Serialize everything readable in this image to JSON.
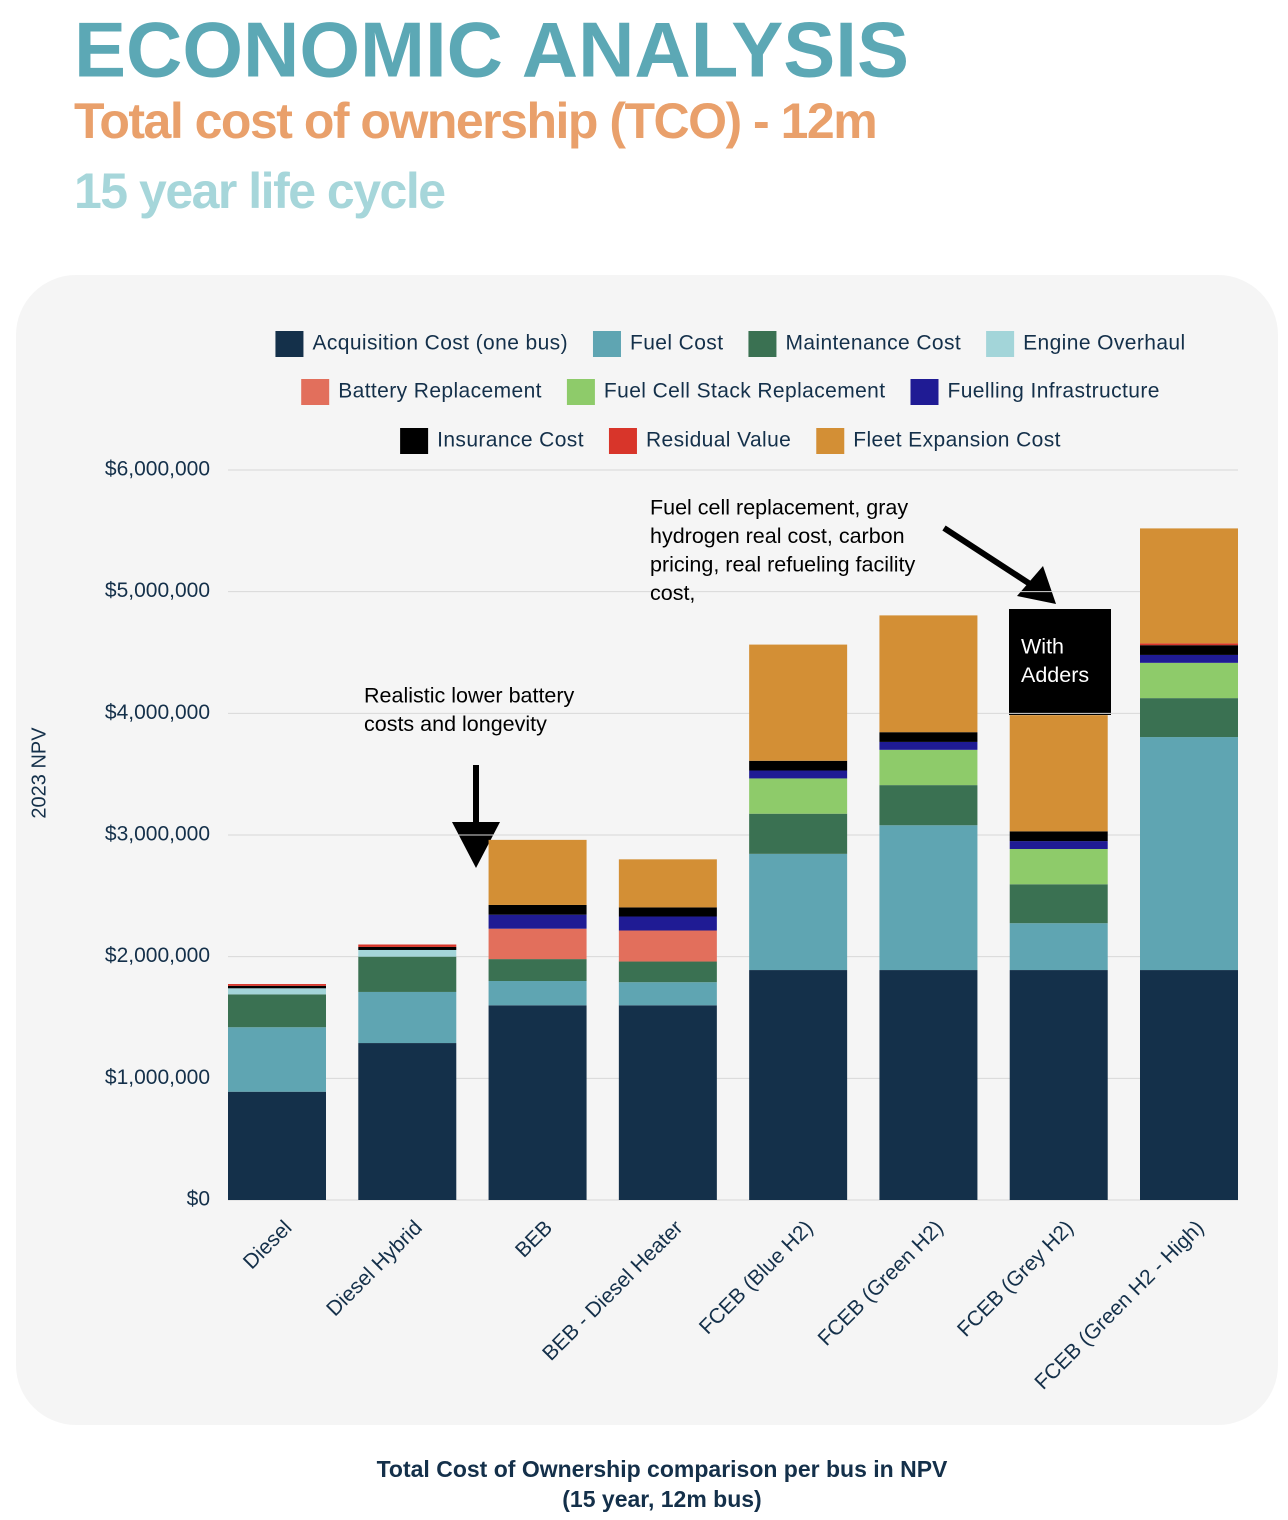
{
  "header": {
    "title": "ECONOMIC ANALYSIS",
    "subtitle": "Total cost of ownership (TCO) - 12m",
    "note": "15 year life cycle"
  },
  "chart_data": {
    "type": "stacked_bar",
    "ylabel": "2023 NPV",
    "categories": [
      "Diesel",
      "Diesel Hybrid",
      "BEB",
      "BEB - Diesel Heater",
      "FCEB (Blue H2)",
      "FCEB (Green H2)",
      "FCEB (Grey H2)",
      "FCEB (Green H2 - High)"
    ],
    "series": [
      {
        "name": "Acquisition Cost (one bus)",
        "color": "#14304a",
        "values": [
          890000,
          1290000,
          1600000,
          1600000,
          1890000,
          1890000,
          1890000,
          1890000
        ]
      },
      {
        "name": "Fuel Cost",
        "color": "#5fa5b2",
        "values": [
          530000,
          420000,
          200000,
          190000,
          955000,
          1190000,
          385000,
          1915000
        ]
      },
      {
        "name": "Maintenance Cost",
        "color": "#3a7152",
        "values": [
          270000,
          290000,
          180000,
          170000,
          330000,
          330000,
          320000,
          320000
        ]
      },
      {
        "name": "Engine Overhaul",
        "color": "#a3d5d9",
        "values": [
          50000,
          55000,
          0,
          0,
          0,
          0,
          0,
          0
        ]
      },
      {
        "name": "Battery Replacement",
        "color": "#e26f5c",
        "values": [
          0,
          0,
          250000,
          255000,
          0,
          0,
          0,
          0
        ]
      },
      {
        "name": "Fuel Cell Stack Replacement",
        "color": "#8ecb6a",
        "values": [
          0,
          0,
          0,
          0,
          290000,
          290000,
          290000,
          290000
        ]
      },
      {
        "name": "Fuelling Infrastructure",
        "color": "#1f1b94",
        "values": [
          0,
          0,
          115000,
          115000,
          65000,
          65000,
          65000,
          65000
        ]
      },
      {
        "name": "Insurance Cost",
        "color": "#000000",
        "values": [
          20000,
          25000,
          80000,
          75000,
          80000,
          80000,
          80000,
          80000
        ]
      },
      {
        "name": "Residual Value",
        "color": "#d8352a",
        "values": [
          15000,
          20000,
          0,
          0,
          0,
          0,
          0,
          15000
        ]
      },
      {
        "name": "Fleet Expansion Cost",
        "color": "#d38f35",
        "values": [
          0,
          0,
          535000,
          395000,
          955000,
          960000,
          955000,
          945000
        ]
      }
    ],
    "ylim": [
      0,
      6000000
    ],
    "yticks": [
      {
        "value": 0,
        "label": "$0"
      },
      {
        "value": 1000000,
        "label": "$1,000,000"
      },
      {
        "value": 2000000,
        "label": "$2,000,000"
      },
      {
        "value": 3000000,
        "label": "$3,000,000"
      },
      {
        "value": 4000000,
        "label": "$4,000,000"
      },
      {
        "value": 5000000,
        "label": "$5,000,000"
      },
      {
        "value": 6000000,
        "label": "$6,000,000"
      }
    ],
    "grid": true,
    "annotations": [
      {
        "lines": [
          "Realistic lower battery",
          "costs and longevity"
        ]
      },
      {
        "lines": [
          "Fuel cell replacement, gray",
          "hydrogen real cost, carbon",
          "pricing, real refueling facility",
          "cost,"
        ]
      },
      {
        "lines": [
          "With",
          "Adders"
        ]
      }
    ],
    "caption": [
      "Total Cost of Ownership comparison per bus in NPV",
      "(15 year, 12m bus)"
    ]
  }
}
